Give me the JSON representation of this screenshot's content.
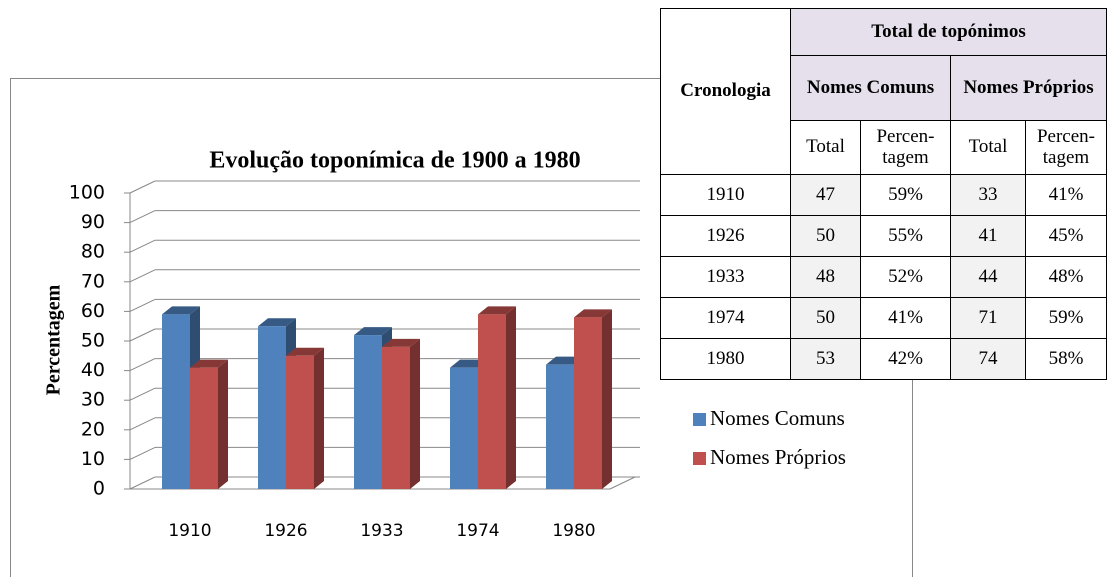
{
  "chart_data": {
    "type": "bar",
    "title": "Evolução toponímica de 1900 a 1980",
    "y_label": "Percentagem",
    "categories": [
      "1910",
      "1926",
      "1933",
      "1974",
      "1980"
    ],
    "series": [
      {
        "name": "Nomes Comuns",
        "color": "#4f81bd",
        "values": [
          59,
          55,
          52,
          41,
          42
        ]
      },
      {
        "name": "Nomes Próprios",
        "color": "#c0504d",
        "values": [
          41,
          45,
          48,
          59,
          58
        ]
      }
    ],
    "ylim": [
      0,
      100
    ],
    "yticks": [
      0,
      10,
      20,
      30,
      40,
      50,
      60,
      70,
      80,
      90,
      100
    ],
    "grid": true,
    "legend": "right"
  },
  "table": {
    "header": {
      "chronology": "Cronologia",
      "total": "Total de topónimos",
      "groups": [
        "Nomes Comuns",
        "Nomes Próprios"
      ],
      "sub": [
        "Total",
        "Percen-\ntagem",
        "Total",
        "Percen-\ntagem"
      ]
    },
    "rows": [
      [
        "1910",
        "47",
        "59%",
        "33",
        "41%"
      ],
      [
        "1926",
        "50",
        "55%",
        "41",
        "45%"
      ],
      [
        "1933",
        "48",
        "52%",
        "44",
        "48%"
      ],
      [
        "1974",
        "50",
        "41%",
        "71",
        "59%"
      ],
      [
        "1980",
        "53",
        "42%",
        "74",
        "58%"
      ]
    ]
  }
}
